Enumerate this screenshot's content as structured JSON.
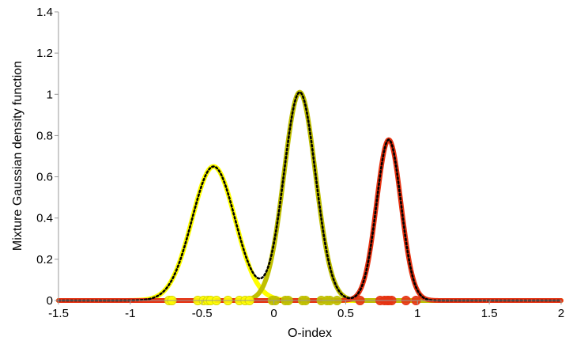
{
  "chart_data": {
    "type": "line",
    "xlabel": "O-index",
    "ylabel": "Mixture Gaussian density function",
    "xlim": [
      -1.5,
      2
    ],
    "ylim": [
      0,
      1.4
    ],
    "xticks": [
      -1.5,
      -1,
      -0.5,
      0,
      0.5,
      1,
      1.5,
      2
    ],
    "yticks": [
      0,
      0.2,
      0.4,
      0.6,
      0.8,
      1,
      1.2,
      1.4
    ],
    "xtick_labels": [
      "-1.5",
      "-1",
      "-0.5",
      "0",
      "0.5",
      "1",
      "1.5",
      "2"
    ],
    "ytick_labels": [
      "0",
      "0.2",
      "0.4",
      "0.6",
      "0.8",
      "1",
      "1.2",
      "1.4"
    ],
    "grid": false,
    "components": [
      {
        "color": "#ffff00",
        "mean": -0.42,
        "sd": 0.15,
        "peak": 0.65
      },
      {
        "color": "#bfbf00",
        "mean": 0.18,
        "sd": 0.11,
        "peak": 1.01
      },
      {
        "color": "#e63312",
        "mean": 0.8,
        "sd": 0.085,
        "peak": 0.78
      }
    ],
    "mixture_style": {
      "color": "#000000",
      "dash": "dotted"
    },
    "observations": [
      {
        "color": "#ffff00",
        "x": [
          -0.73,
          -0.71,
          -0.53,
          -0.49,
          -0.46,
          -0.44,
          -0.4,
          -0.32,
          -0.24,
          -0.2,
          -0.17
        ]
      },
      {
        "color": "#bfbf00",
        "x": [
          -0.01,
          0.01,
          0.08,
          0.1,
          0.2,
          0.22,
          0.33,
          0.37,
          0.39,
          0.44
        ]
      },
      {
        "color": "#e63312",
        "x": [
          0.6,
          0.74,
          0.77,
          0.79,
          0.8,
          0.82,
          0.92,
          0.99
        ]
      }
    ]
  }
}
